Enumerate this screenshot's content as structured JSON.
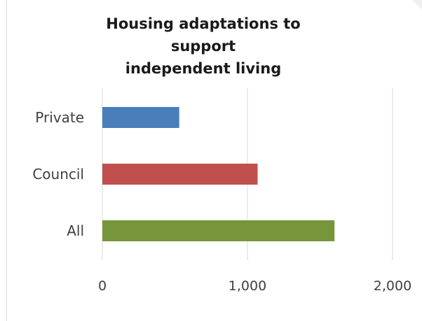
{
  "chart_data": {
    "type": "bar",
    "orientation": "horizontal",
    "title": "Housing adaptations to support independent living",
    "title_lines": [
      "Housing adaptations to support",
      "independent living"
    ],
    "categories": [
      "Private",
      "Council",
      "All"
    ],
    "values": [
      530,
      1070,
      1600
    ],
    "colors": [
      "#4a7ebb",
      "#c0504d",
      "#77963b"
    ],
    "xlim": [
      0,
      2000
    ],
    "xticks": [
      0,
      1000,
      2000
    ],
    "xtick_labels": [
      "0",
      "1,000",
      "2,000"
    ],
    "grid": "vertical",
    "legend": "none"
  }
}
